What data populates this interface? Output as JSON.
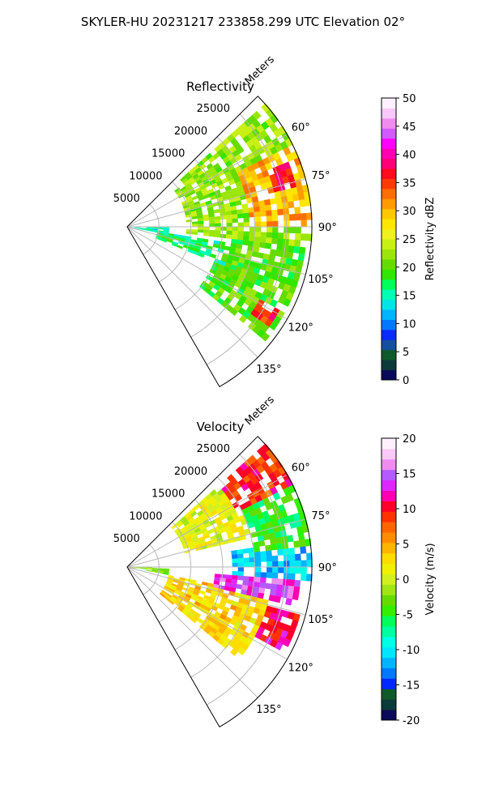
{
  "figure_title": "SKYLER-HU  20231217  233858.299 UTC Elevation 02°",
  "colors": {
    "ring_grid": "#b8b8b8",
    "frame": "#000000",
    "refl_scale": [
      "#0a0a5a",
      "#0b3a3a",
      "#0f5a2a",
      "#1450a0",
      "#0a28ff",
      "#0078ff",
      "#00b4ff",
      "#00e6e6",
      "#00ffb4",
      "#00ff5a",
      "#32e600",
      "#64dc00",
      "#9be60a",
      "#c8f014",
      "#f0f01e",
      "#ffe600",
      "#ffc800",
      "#ff9b00",
      "#ff6e00",
      "#ff3c00",
      "#ff0a1e",
      "#ff0078",
      "#ff00b4",
      "#ff00ff",
      "#d25aff",
      "#f08cf0",
      "#f8c8f8",
      "#fff0ff"
    ],
    "vel_scale": [
      "#0a0a5a",
      "#0b3a3a",
      "#0f5a2a",
      "#0028ff",
      "#0078ff",
      "#00b4ff",
      "#00e6ff",
      "#00ffe6",
      "#00ffa0",
      "#00ff5a",
      "#32f000",
      "#64dc00",
      "#a0e614",
      "#d2f01e",
      "#f0f000",
      "#ffdc00",
      "#ffb400",
      "#ff8c00",
      "#ff6400",
      "#ff3200",
      "#ff0028",
      "#ff00b4",
      "#dc28ff",
      "#b45aff",
      "#f08cf0",
      "#f8c8f8",
      "#fff0ff"
    ]
  },
  "chart_data": [
    {
      "type": "heatmap",
      "subtype": "polar-sector (radar PPI)",
      "title": "Reflectivity",
      "range_label": "Meters",
      "range_ticks": [
        5000,
        10000,
        15000,
        20000,
        25000
      ],
      "range_limit": [
        0,
        29000
      ],
      "azimuth_range_deg": [
        45,
        150
      ],
      "azimuth_ticks_deg": [
        60,
        75,
        90,
        105,
        120,
        135
      ],
      "azimuth_tick_labels": [
        "60°",
        "75°",
        "90°",
        "105°",
        "120°",
        "135°"
      ],
      "colorbar": {
        "label": "Reflectivity dBZ",
        "range": [
          0,
          50
        ],
        "ticks": [
          0,
          5,
          10,
          15,
          20,
          25,
          30,
          35,
          40,
          45,
          50
        ]
      },
      "echo_regions": [
        {
          "az": [
            47,
            95
          ],
          "range_m": [
            9000,
            29000
          ],
          "value": 22
        },
        {
          "az": [
            62,
            88
          ],
          "range_m": [
            19000,
            29000
          ],
          "value": 30
        },
        {
          "az": [
            68,
            76
          ],
          "range_m": [
            23000,
            27000
          ],
          "value": 37
        },
        {
          "az": [
            96,
            128
          ],
          "range_m": [
            14000,
            28000
          ],
          "value": 20
        },
        {
          "az": [
            98,
            112
          ],
          "range_m": [
            4000,
            16000
          ],
          "value": 17
        },
        {
          "az": [
            118,
            124
          ],
          "range_m": [
            23000,
            27000
          ],
          "value": 36
        },
        {
          "az": [
            88,
            100
          ],
          "range_m": [
            0,
            6000
          ],
          "value": 15
        }
      ]
    },
    {
      "type": "heatmap",
      "subtype": "polar-sector (radar PPI)",
      "title": "Velocity",
      "range_label": "Meters",
      "range_ticks": [
        5000,
        10000,
        15000,
        20000,
        25000
      ],
      "range_limit": [
        0,
        29000
      ],
      "azimuth_range_deg": [
        45,
        150
      ],
      "azimuth_ticks_deg": [
        60,
        75,
        90,
        105,
        120,
        135
      ],
      "azimuth_tick_labels": [
        "60°",
        "75°",
        "90°",
        "105°",
        "120°",
        "135°"
      ],
      "colorbar": {
        "label": "Velocity (m/s)",
        "range": [
          -20,
          20
        ],
        "ticks": [
          -20,
          -15,
          -10,
          -5,
          0,
          5,
          10,
          15,
          20
        ]
      },
      "echo_regions": [
        {
          "az": [
            47,
            62
          ],
          "range_m": [
            19000,
            29000
          ],
          "value": 9
        },
        {
          "az": [
            47,
            75
          ],
          "range_m": [
            9000,
            20000
          ],
          "value": 1
        },
        {
          "az": [
            62,
            82
          ],
          "range_m": [
            20000,
            29000
          ],
          "value": -5
        },
        {
          "az": [
            80,
            94
          ],
          "range_m": [
            16000,
            29000
          ],
          "value": -11
        },
        {
          "az": [
            93,
            103
          ],
          "range_m": [
            13000,
            27000
          ],
          "value": 14
        },
        {
          "az": [
            104,
            118
          ],
          "range_m": [
            22000,
            28000
          ],
          "value": 11
        },
        {
          "az": [
            100,
            128
          ],
          "range_m": [
            6000,
            22000
          ],
          "value": 3
        },
        {
          "az": [
            88,
            100
          ],
          "range_m": [
            0,
            6000
          ],
          "value": -2
        }
      ]
    }
  ]
}
